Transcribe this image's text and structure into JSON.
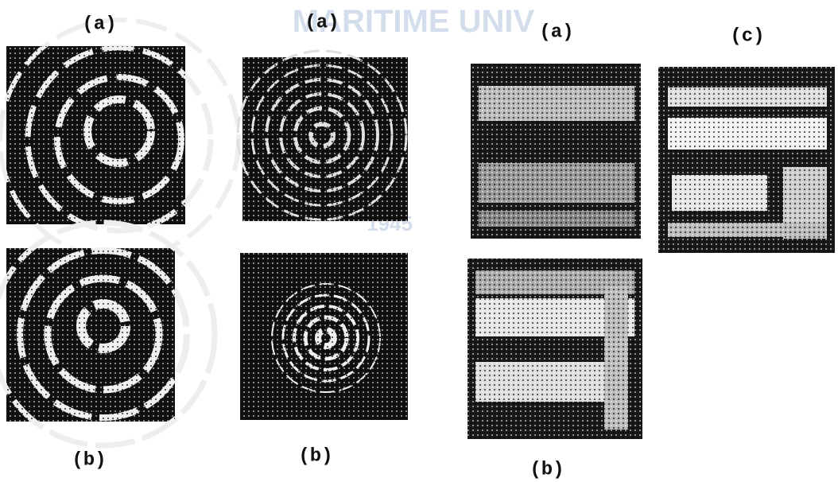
{
  "figure": {
    "labels": [
      "(a)",
      "(a)",
      "(a)",
      "(c)",
      "(b)",
      "(b)",
      "(b)"
    ],
    "watermark": [
      "MARITIME UNIV",
      "1945"
    ]
  }
}
